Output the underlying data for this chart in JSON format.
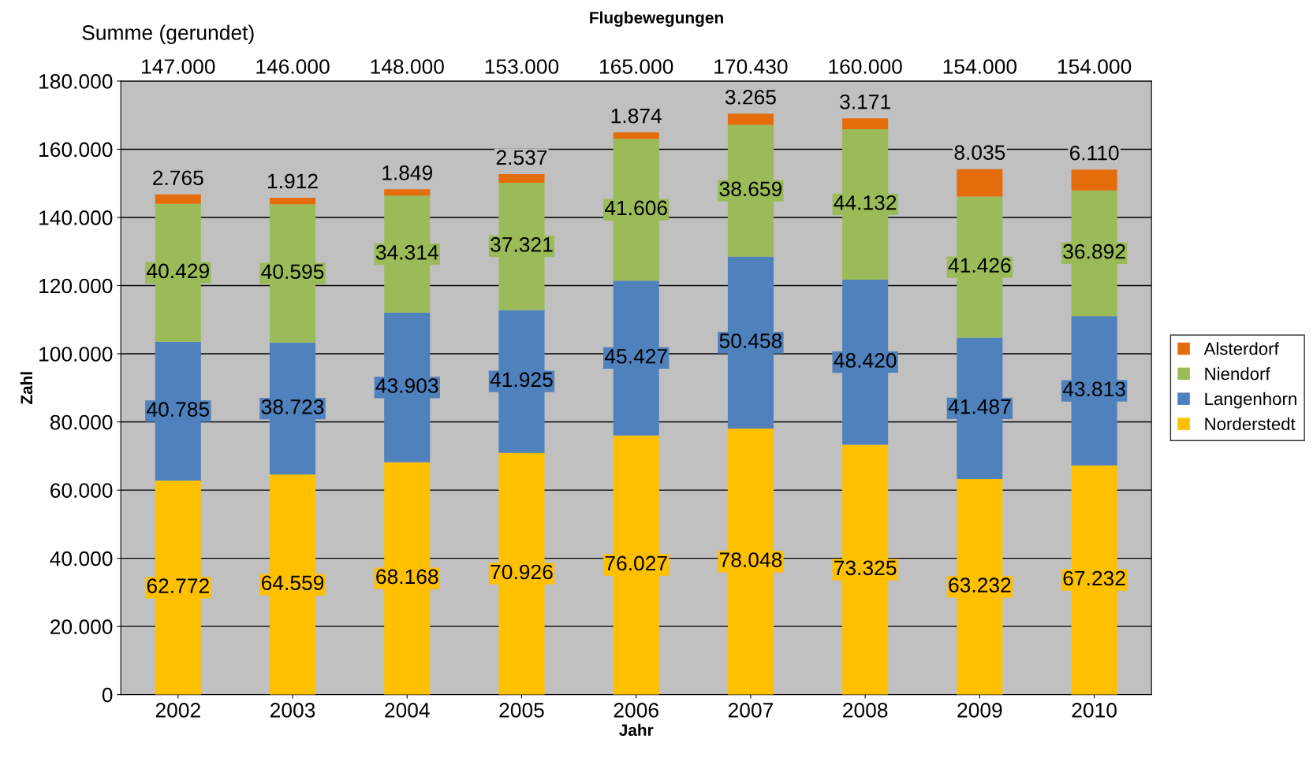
{
  "chart_data": {
    "type": "bar",
    "stacked": true,
    "title": "Flugbewegungen",
    "xlabel": "Jahr",
    "ylabel": "Zahl",
    "categories": [
      "2002",
      "2003",
      "2004",
      "2005",
      "2006",
      "2007",
      "2008",
      "2009",
      "2010"
    ],
    "series": [
      {
        "name": "Norderstedt",
        "color": "#ffc000",
        "values": [
          62772,
          64559,
          68168,
          70926,
          76027,
          78048,
          73325,
          63232,
          67232
        ],
        "value_labels": [
          "62.772",
          "64.559",
          "68.168",
          "70.926",
          "76.027",
          "78.048",
          "73.325",
          "63.232",
          "67.232"
        ]
      },
      {
        "name": "Langenhorn",
        "color": "#4f81bd",
        "values": [
          40785,
          38723,
          43903,
          41925,
          45427,
          50458,
          48420,
          41487,
          43813
        ],
        "value_labels": [
          "40.785",
          "38.723",
          "43.903",
          "41.925",
          "45.427",
          "50.458",
          "48.420",
          "41.487",
          "43.813"
        ]
      },
      {
        "name": "Niendorf",
        "color": "#9bbb59",
        "values": [
          40429,
          40595,
          34314,
          37321,
          41606,
          38659,
          44132,
          41426,
          36892
        ],
        "value_labels": [
          "40.429",
          "40.595",
          "34.314",
          "37.321",
          "41.606",
          "38.659",
          "44.132",
          "41.426",
          "36.892"
        ]
      },
      {
        "name": "Alsterdorf",
        "color": "#e46c0a",
        "values": [
          2765,
          1912,
          1849,
          2537,
          1874,
          3265,
          3171,
          8035,
          6110
        ],
        "value_labels": [
          "2.765",
          "1.912",
          "1.849",
          "2.537",
          "1.874",
          "3.265",
          "3.171",
          "8.035",
          "6.110"
        ]
      }
    ],
    "annotations": [
      "Summe (gerundet)",
      "147.000",
      "146.000",
      "148.000",
      "153.000",
      "165.000",
      "170.430",
      "160.000",
      "154.000",
      "154.000"
    ],
    "ylim": [
      0,
      180000
    ],
    "yticks": [
      {
        "value": 0,
        "label": "0"
      },
      {
        "value": 20000,
        "label": "20.000"
      },
      {
        "value": 40000,
        "label": "40.000"
      },
      {
        "value": 60000,
        "label": "60.000"
      },
      {
        "value": 80000,
        "label": "80.000"
      },
      {
        "value": 100000,
        "label": "100.000"
      },
      {
        "value": 120000,
        "label": "120.000"
      },
      {
        "value": 140000,
        "label": "140.000"
      },
      {
        "value": 160000,
        "label": "160.000"
      },
      {
        "value": 180000,
        "label": "180.000"
      }
    ],
    "grid": "y",
    "legend": "right"
  }
}
